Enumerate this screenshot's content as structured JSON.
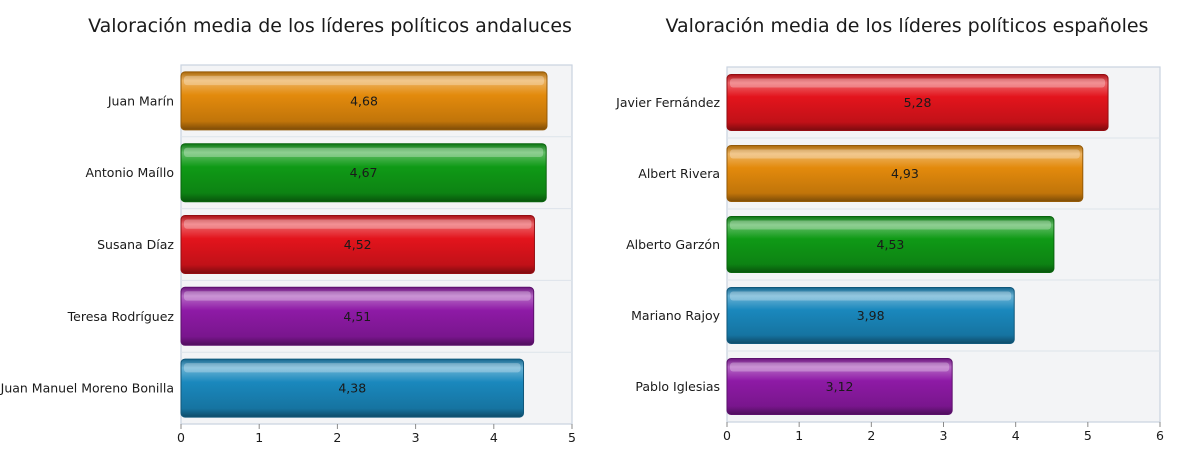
{
  "colors": {
    "orange": "#e38a0c",
    "green": "#0f9a16",
    "red": "#e3141c",
    "purple": "#8e1aa6",
    "blue": "#1a88bd",
    "plot_bg": "#f3f4f6",
    "plot_border": "#c9d3df",
    "grid": "#dde3ea"
  },
  "chart_data": [
    {
      "type": "bar",
      "orientation": "horizontal",
      "title": "Valoración media de los líderes políticos andaluces",
      "categories": [
        "Juan Marín",
        "Antonio Maíllo",
        "Susana Díaz",
        "Teresa Rodríguez",
        "Juan Manuel Moreno Bonilla"
      ],
      "values": [
        4.68,
        4.67,
        4.52,
        4.51,
        4.38
      ],
      "value_labels": [
        "4,68",
        "4,67",
        "4,52",
        "4,51",
        "4,38"
      ],
      "bar_colors": [
        "orange",
        "green",
        "red",
        "purple",
        "blue"
      ],
      "xlim": [
        0,
        5
      ],
      "xticks": [
        "0",
        "1",
        "2",
        "3",
        "4",
        "5"
      ],
      "grid": true,
      "xlabel": "",
      "ylabel": ""
    },
    {
      "type": "bar",
      "orientation": "horizontal",
      "title": "Valoración media de los líderes políticos españoles",
      "categories": [
        "Javier Fernández",
        "Albert Rivera",
        "Alberto Garzón",
        "Mariano Rajoy",
        "Pablo Iglesias"
      ],
      "values": [
        5.28,
        4.93,
        4.53,
        3.98,
        3.12
      ],
      "value_labels": [
        "5,28",
        "4,93",
        "4,53",
        "3,98",
        "3,12"
      ],
      "bar_colors": [
        "red",
        "orange",
        "green",
        "blue",
        "purple"
      ],
      "xlim": [
        0,
        6
      ],
      "xticks": [
        "0",
        "1",
        "2",
        "3",
        "4",
        "5",
        "6"
      ],
      "grid": true,
      "xlabel": "",
      "ylabel": ""
    }
  ]
}
